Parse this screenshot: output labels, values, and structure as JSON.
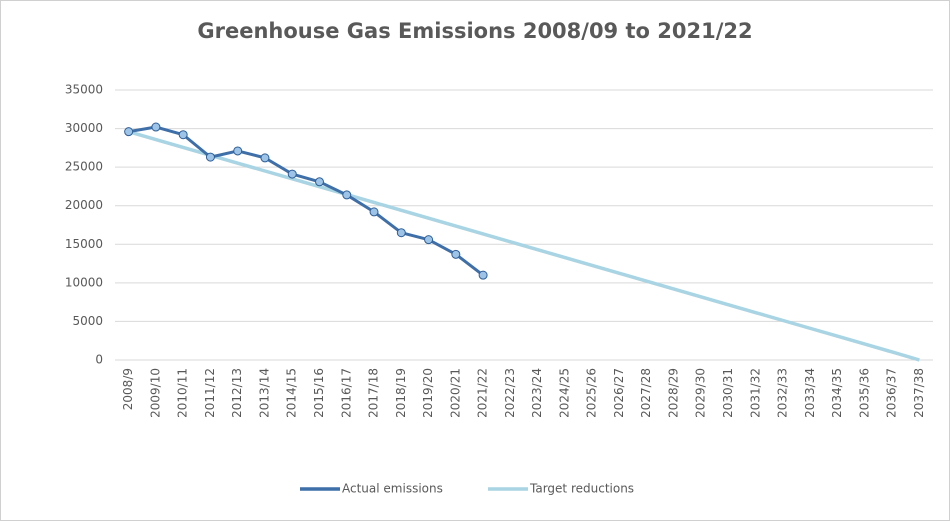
{
  "chart_data": {
    "type": "line",
    "title": "Greenhouse Gas Emissions 2008/09 to 2021/22",
    "categories": [
      "2008/9",
      "2009/10",
      "2010/11",
      "2011/12",
      "2012/13",
      "2013/14",
      "2014/15",
      "2015/16",
      "2016/17",
      "2017/18",
      "2018/19",
      "2019/20",
      "2020/21",
      "2021/22",
      "2022/23",
      "2023/24",
      "2024/25",
      "2025/26",
      "2026/27",
      "2027/28",
      "2028/29",
      "2029/30",
      "2030/31",
      "2031/32",
      "2032/33",
      "2033/34",
      "2034/35",
      "2035/36",
      "2036/37",
      "2037/38"
    ],
    "series": [
      {
        "name": "Actual emissions",
        "color": "#3f6fa8",
        "marker_color": "#9dc3e6",
        "values": [
          29600,
          30200,
          29200,
          26300,
          27100,
          26200,
          24100,
          23100,
          21400,
          19200,
          16500,
          15600,
          13700,
          11000,
          null,
          null,
          null,
          null,
          null,
          null,
          null,
          null,
          null,
          null,
          null,
          null,
          null,
          null,
          null,
          null
        ]
      },
      {
        "name": "Target reductions",
        "color": "#a9d4e3",
        "values": [
          29600,
          28580,
          27560,
          26540,
          25520,
          24500,
          23480,
          22460,
          21440,
          20420,
          19400,
          18380,
          17360,
          16340,
          15320,
          14300,
          13280,
          12260,
          11240,
          10220,
          9200,
          8180,
          7160,
          6140,
          5120,
          4100,
          3080,
          2060,
          1040,
          0
        ]
      }
    ],
    "ylim": [
      0,
      35000
    ],
    "yticks": [
      0,
      5000,
      10000,
      15000,
      20000,
      25000,
      30000,
      35000
    ],
    "grid": true,
    "legend": "bottom"
  }
}
